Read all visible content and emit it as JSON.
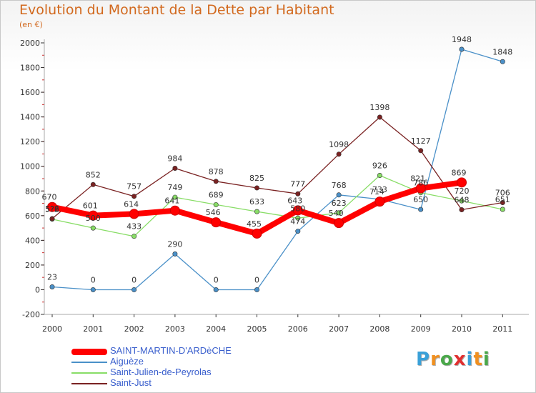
{
  "title": "Evolution du Montant de la Dette par Habitant",
  "subtitle": "(en €)",
  "logo": {
    "text": "Proxiti",
    "letters": [
      "P",
      "r",
      "o",
      "x",
      "i",
      "t",
      "i"
    ],
    "colors": [
      "#3aa0d8",
      "#f09020",
      "#4aa84a",
      "#e03030",
      "#3aa0d8",
      "#f09020",
      "#4aa84a"
    ]
  },
  "chart_data": {
    "type": "line",
    "x": [
      "2000",
      "2001",
      "2002",
      "2003",
      "2004",
      "2005",
      "2006",
      "2007",
      "2008",
      "2009",
      "2010",
      "2011"
    ],
    "ylim": [
      -200,
      2000
    ],
    "yticks": [
      "-200",
      "0",
      "200",
      "400",
      "600",
      "800",
      "1000",
      "1200",
      "1400",
      "1600",
      "1800",
      "2000"
    ],
    "grid": false,
    "legend_placement": "bottom-left",
    "series": [
      {
        "name": "SAINT-MARTIN-D'ARDèCHE",
        "color": "#ff0000",
        "values": [
          670,
          601,
          614,
          641,
          546,
          455,
          643,
          540,
          714,
          821,
          869,
          null
        ],
        "labels": [
          "670",
          "601",
          "614",
          "641",
          "546",
          "455",
          "643",
          "540",
          "714",
          "821",
          "869",
          ""
        ]
      },
      {
        "name": "Aiguèze",
        "color": "#4a90c8",
        "values": [
          23,
          0,
          0,
          290,
          0,
          0,
          474,
          768,
          733,
          650,
          1948,
          1848
        ],
        "labels": [
          "23",
          "0",
          "0",
          "290",
          "0",
          "0",
          "474",
          "768",
          "733",
          "650",
          "1948",
          "1848"
        ]
      },
      {
        "name": "Saint-Julien-de-Peyrolas",
        "color": "#88dd66",
        "values": [
          572,
          500,
          433,
          749,
          689,
          633,
          580,
          623,
          926,
          786,
          720,
          651
        ],
        "labels": [
          "5?2",
          "500",
          "433",
          "749",
          "689",
          "633",
          "580",
          "623",
          "926",
          "786",
          "720",
          "651"
        ]
      },
      {
        "name": "Saint-Just",
        "color": "#7a2222",
        "values": [
          576,
          852,
          757,
          984,
          878,
          825,
          777,
          1098,
          1398,
          1127,
          648,
          706
        ],
        "labels": [
          "5?6",
          "852",
          "757",
          "984",
          "878",
          "825",
          "777",
          "1098",
          "1398",
          "1127",
          "648",
          "706"
        ]
      }
    ]
  }
}
